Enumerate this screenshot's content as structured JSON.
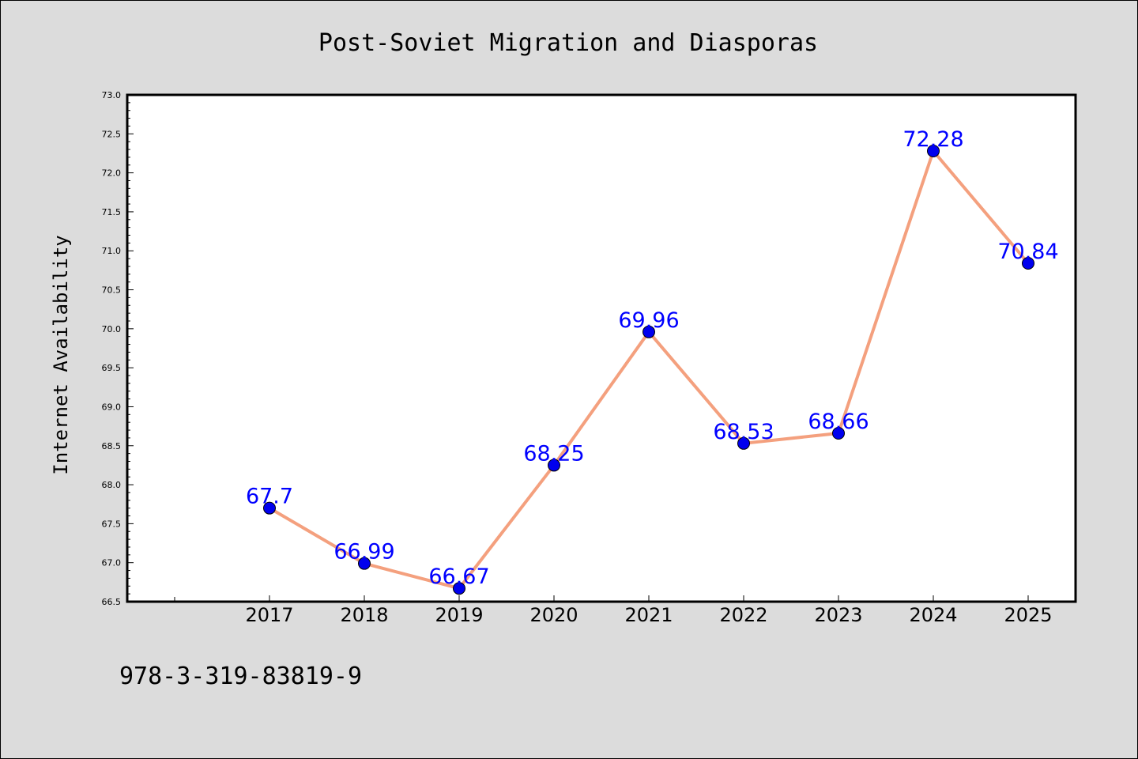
{
  "chart_data": {
    "type": "line",
    "title": "Post-Soviet Migration and Diasporas",
    "xlabel": "",
    "ylabel": "Internet Availability",
    "categories": [
      "2017",
      "2018",
      "2019",
      "2020",
      "2021",
      "2022",
      "2023",
      "2024",
      "2025"
    ],
    "values": [
      67.7,
      66.99,
      66.67,
      68.25,
      69.96,
      68.53,
      68.66,
      72.28,
      70.84
    ],
    "data_labels": [
      "67.7",
      "66.99",
      "66.67",
      "68.25",
      "69.96",
      "68.53",
      "68.66",
      "72.28",
      "70.84"
    ],
    "ylim": [
      66.5,
      73.0
    ],
    "yticks": [
      "66.5",
      "67.0",
      "67.5",
      "68.0",
      "68.5",
      "69.0",
      "69.5",
      "70.0",
      "70.5",
      "71.0",
      "71.5",
      "72.0",
      "72.5",
      "73.0"
    ],
    "grid": false,
    "legend": "none",
    "line_color": "#f4a07e",
    "marker_color": "#0000ee",
    "label_color": "#0000ff",
    "background_color": "#dcdcdc",
    "plot_background": "#ffffff"
  },
  "footer": {
    "isbn": "978-3-319-83819-9"
  }
}
